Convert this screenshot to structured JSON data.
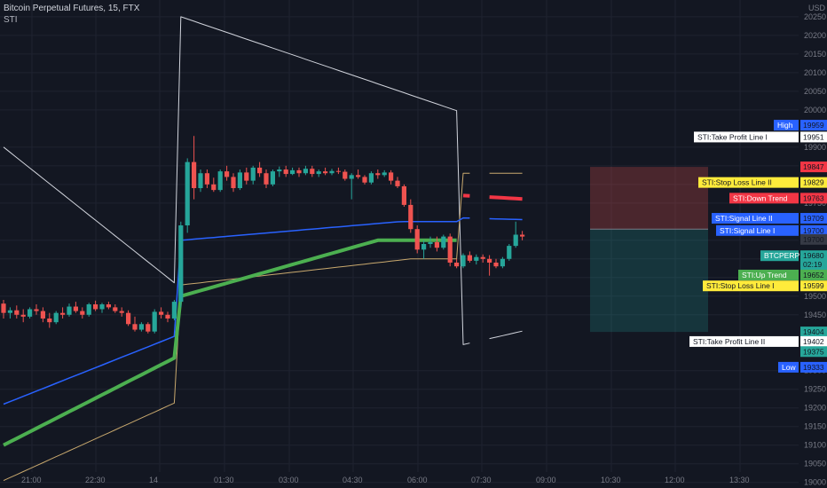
{
  "header": {
    "symbol_line": "Bitcoin Perpetual Futures, 15, FTX",
    "indicator": "STI"
  },
  "axis": {
    "currency": "USD"
  },
  "colors": {
    "bg": "#131722",
    "grid": "#1f2330",
    "up": "#26a69a",
    "down": "#ef5350",
    "green_line": "#4caf50",
    "blue_line": "#2962ff",
    "red_line": "#f23645",
    "envelope": "#c9a96e",
    "white_line": "#d1d4dc"
  },
  "chart_data": {
    "type": "candlestick",
    "title": "Bitcoin Perpetual Futures, 15, FTX",
    "y_ticks": [
      20250,
      20200,
      20150,
      20100,
      20050,
      20000,
      19900,
      19850,
      19800,
      19750,
      19650,
      19600,
      19550,
      19500,
      19450,
      19300,
      19250,
      19200,
      19150,
      19100,
      19050,
      19000
    ],
    "ylim": [
      18985,
      20295
    ],
    "x_ticks": [
      "21:00",
      "22:30",
      "14",
      "01:30",
      "03:00",
      "04:30",
      "06:00",
      "07:30",
      "09:00",
      "10:30",
      "12:00",
      "13:30"
    ],
    "candles_ohlc": [
      [
        19480,
        19490,
        19440,
        19455
      ],
      [
        19455,
        19470,
        19440,
        19462
      ],
      [
        19462,
        19475,
        19440,
        19450
      ],
      [
        19450,
        19465,
        19430,
        19445
      ],
      [
        19445,
        19470,
        19440,
        19465
      ],
      [
        19465,
        19478,
        19450,
        19460
      ],
      [
        19460,
        19470,
        19430,
        19440
      ],
      [
        19440,
        19455,
        19415,
        19430
      ],
      [
        19430,
        19460,
        19425,
        19455
      ],
      [
        19455,
        19470,
        19440,
        19450
      ],
      [
        19450,
        19480,
        19445,
        19472
      ],
      [
        19472,
        19485,
        19455,
        19460
      ],
      [
        19460,
        19470,
        19440,
        19450
      ],
      [
        19450,
        19482,
        19445,
        19478
      ],
      [
        19478,
        19488,
        19460,
        19465
      ],
      [
        19465,
        19482,
        19455,
        19478
      ],
      [
        19478,
        19485,
        19465,
        19470
      ],
      [
        19470,
        19478,
        19455,
        19460
      ],
      [
        19460,
        19470,
        19445,
        19455
      ],
      [
        19455,
        19462,
        19420,
        19425
      ],
      [
        19425,
        19445,
        19405,
        19410
      ],
      [
        19410,
        19430,
        19405,
        19425
      ],
      [
        19425,
        19430,
        19400,
        19405
      ],
      [
        19405,
        19465,
        19400,
        19458
      ],
      [
        19458,
        19470,
        19440,
        19450
      ],
      [
        19450,
        19458,
        19430,
        19440
      ],
      [
        19440,
        19490,
        19435,
        19485
      ],
      [
        19485,
        19700,
        19470,
        19690
      ],
      [
        19690,
        19870,
        19670,
        19860
      ],
      [
        19860,
        19930,
        19760,
        19790
      ],
      [
        19790,
        19840,
        19780,
        19830
      ],
      [
        19830,
        19840,
        19790,
        19800
      ],
      [
        19800,
        19818,
        19780,
        19785
      ],
      [
        19785,
        19840,
        19780,
        19835
      ],
      [
        19835,
        19850,
        19810,
        19820
      ],
      [
        19820,
        19830,
        19780,
        19790
      ],
      [
        19790,
        19840,
        19785,
        19832
      ],
      [
        19832,
        19845,
        19800,
        19810
      ],
      [
        19810,
        19850,
        19800,
        19845
      ],
      [
        19845,
        19860,
        19820,
        19830
      ],
      [
        19830,
        19840,
        19790,
        19800
      ],
      [
        19800,
        19840,
        19795,
        19835
      ],
      [
        19835,
        19848,
        19820,
        19840
      ],
      [
        19840,
        19850,
        19820,
        19828
      ],
      [
        19828,
        19845,
        19825,
        19838
      ],
      [
        19838,
        19845,
        19820,
        19830
      ],
      [
        19830,
        19850,
        19825,
        19842
      ],
      [
        19842,
        19850,
        19820,
        19828
      ],
      [
        19828,
        19840,
        19820,
        19835
      ],
      [
        19835,
        19845,
        19825,
        19830
      ],
      [
        19830,
        19842,
        19825,
        19836
      ],
      [
        19836,
        19845,
        19828,
        19834
      ],
      [
        19834,
        19840,
        19810,
        19815
      ],
      [
        19815,
        19830,
        19760,
        19825
      ],
      [
        19825,
        19840,
        19815,
        19820
      ],
      [
        19820,
        19825,
        19800,
        19805
      ],
      [
        19805,
        19835,
        19800,
        19830
      ],
      [
        19830,
        19840,
        19815,
        19825
      ],
      [
        19825,
        19838,
        19820,
        19832
      ],
      [
        19832,
        19838,
        19800,
        19810
      ],
      [
        19810,
        19820,
        19790,
        19795
      ],
      [
        19795,
        19800,
        19740,
        19745
      ],
      [
        19745,
        19760,
        19670,
        19680
      ],
      [
        19680,
        19690,
        19615,
        19625
      ],
      [
        19625,
        19650,
        19600,
        19640
      ],
      [
        19640,
        19660,
        19630,
        19645
      ],
      [
        19645,
        19660,
        19620,
        19630
      ],
      [
        19630,
        19665,
        19625,
        19660
      ],
      [
        19660,
        19668,
        19580,
        19590
      ],
      [
        19590,
        19600,
        19575,
        19580
      ],
      [
        19580,
        19615,
        19575,
        19610
      ],
      [
        19610,
        19620,
        19590,
        19595
      ],
      [
        19595,
        19612,
        19585,
        19605
      ],
      [
        19605,
        19612,
        19590,
        19600
      ],
      [
        19600,
        19610,
        19555,
        19590
      ],
      [
        19590,
        19600,
        19575,
        19580
      ],
      [
        19580,
        19605,
        19575,
        19600
      ],
      [
        19600,
        19640,
        19595,
        19635
      ],
      [
        19635,
        19700,
        19630,
        19665
      ],
      [
        19665,
        19675,
        19650,
        19660
      ]
    ],
    "indicator_lines": {
      "white_band": "upper/lower envelope",
      "stop_line": "thick green/red trend line",
      "signal_line": "blue line",
      "outer_band": "thin tan line"
    },
    "price_labels": [
      {
        "text": "High",
        "value": "19959"
      },
      {
        "text": "STI:Take Profit Line I",
        "value": "19951"
      },
      {
        "text": "",
        "value": "19847"
      },
      {
        "text": "STI:Stop Loss Line II",
        "value": "19829"
      },
      {
        "text": "STI:Down Trend",
        "value": "19763"
      },
      {
        "text": "STI:Signal Line II",
        "value": "19709"
      },
      {
        "text": "STI:Signal Line I",
        "value": "19700"
      },
      {
        "text": "",
        "value": "19700"
      },
      {
        "text": "BTCPERP",
        "value": "19680"
      },
      {
        "text": "",
        "value": "02:19"
      },
      {
        "text": "STI:Up Trend",
        "value": "19652"
      },
      {
        "text": "STI:Stop Loss Line I",
        "value": "19599"
      },
      {
        "text": "",
        "value": "19404"
      },
      {
        "text": "STI:Take Profit Line II",
        "value": "19402"
      },
      {
        "text": "",
        "value": "19375"
      },
      {
        "text": "Low",
        "value": "19333"
      }
    ]
  }
}
